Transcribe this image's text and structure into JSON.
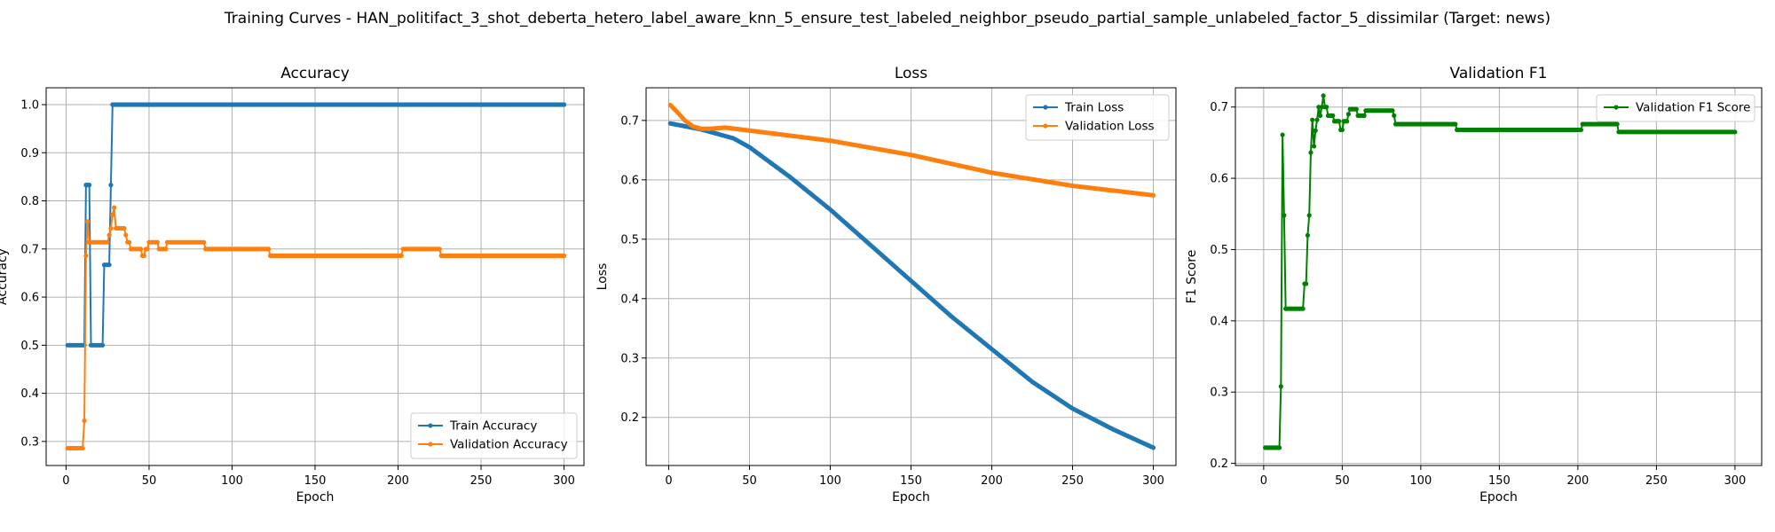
{
  "figure": {
    "suptitle": "Training Curves - HAN_politifact_3_shot_deberta_hetero_label_aware_knn_5_ensure_test_labeled_neighbor_pseudo_partial_sample_unlabeled_factor_5_dissimilar (Target: news)"
  },
  "chart_data": [
    {
      "type": "line",
      "title": "Accuracy",
      "xlabel": "Epoch",
      "ylabel": "Accuracy",
      "xlim": [
        -12,
        312
      ],
      "ylim": [
        0.25,
        1.035
      ],
      "xticks": [
        0,
        50,
        100,
        150,
        200,
        250,
        300
      ],
      "yticks": [
        0.3,
        0.4,
        0.5,
        0.6,
        0.7,
        0.8,
        0.9,
        1.0
      ],
      "ytick_labels": [
        "0.3",
        "0.4",
        "0.5",
        "0.6",
        "0.7",
        "0.8",
        "0.9",
        "1.0"
      ],
      "grid": true,
      "legend_position": "lower-right",
      "series": [
        {
          "name": "Train Accuracy",
          "color": "#1f77b4",
          "segments": [
            {
              "x": [
                1,
                10
              ],
              "y": 0.5
            },
            {
              "x": [
                11,
                11
              ],
              "y": 0.5
            },
            {
              "x": [
                12,
                14
              ],
              "y": 0.833
            },
            {
              "x": [
                15,
                22
              ],
              "y": 0.5
            },
            {
              "x": [
                23,
                26
              ],
              "y": 0.667
            },
            {
              "x": [
                27,
                27
              ],
              "y": 0.833
            },
            {
              "x": [
                28,
                300
              ],
              "y": 1.0
            }
          ]
        },
        {
          "name": "Validation Accuracy",
          "color": "#ff7f0e",
          "segments": [
            {
              "x": [
                1,
                10
              ],
              "y": 0.286
            },
            {
              "x": [
                11,
                11
              ],
              "y": 0.343
            },
            {
              "x": [
                12,
                12
              ],
              "y": 0.686
            },
            {
              "x": [
                13,
                13
              ],
              "y": 0.757
            },
            {
              "x": [
                14,
                25
              ],
              "y": 0.714
            },
            {
              "x": [
                26,
                26
              ],
              "y": 0.729
            },
            {
              "x": [
                27,
                27
              ],
              "y": 0.743
            },
            {
              "x": [
                28,
                28
              ],
              "y": 0.771
            },
            {
              "x": [
                29,
                29
              ],
              "y": 0.786
            },
            {
              "x": [
                30,
                35
              ],
              "y": 0.743
            },
            {
              "x": [
                36,
                36
              ],
              "y": 0.729
            },
            {
              "x": [
                37,
                38
              ],
              "y": 0.714
            },
            {
              "x": [
                39,
                41
              ],
              "y": 0.7
            },
            {
              "x": [
                42,
                45
              ],
              "y": 0.7
            },
            {
              "x": [
                46,
                47
              ],
              "y": 0.686
            },
            {
              "x": [
                48,
                49
              ],
              "y": 0.7
            },
            {
              "x": [
                50,
                55
              ],
              "y": 0.714
            },
            {
              "x": [
                56,
                60
              ],
              "y": 0.7
            },
            {
              "x": [
                61,
                64
              ],
              "y": 0.714
            },
            {
              "x": [
                65,
                83
              ],
              "y": 0.714
            },
            {
              "x": [
                84,
                122
              ],
              "y": 0.7
            },
            {
              "x": [
                123,
                202
              ],
              "y": 0.686
            },
            {
              "x": [
                203,
                225
              ],
              "y": 0.7
            },
            {
              "x": [
                226,
                300
              ],
              "y": 0.686
            }
          ]
        }
      ]
    },
    {
      "type": "line",
      "title": "Loss",
      "xlabel": "Epoch",
      "ylabel": "Loss",
      "xlim": [
        -14,
        314
      ],
      "ylim": [
        0.119,
        0.755
      ],
      "xticks": [
        0,
        50,
        100,
        150,
        200,
        250,
        300
      ],
      "yticks": [
        0.2,
        0.3,
        0.4,
        0.5,
        0.6,
        0.7
      ],
      "ytick_labels": [
        "0.2",
        "0.3",
        "0.4",
        "0.5",
        "0.6",
        "0.7"
      ],
      "grid": true,
      "legend_position": "upper-right",
      "series": [
        {
          "name": "Train Loss",
          "color": "#1f77b4",
          "curve": {
            "x": [
              1,
              20,
              40,
              50,
              75,
              100,
              125,
              150,
              175,
              200,
              225,
              250,
              275,
              300
            ],
            "y": [
              0.695,
              0.685,
              0.67,
              0.655,
              0.605,
              0.55,
              0.49,
              0.43,
              0.37,
              0.315,
              0.26,
              0.215,
              0.18,
              0.149
            ]
          }
        },
        {
          "name": "Validation Loss",
          "color": "#ff7f0e",
          "curve": {
            "x": [
              1,
              5,
              10,
              15,
              20,
              25,
              35,
              50,
              100,
              150,
              200,
              250,
              300
            ],
            "y": [
              0.726,
              0.715,
              0.7,
              0.69,
              0.686,
              0.686,
              0.688,
              0.683,
              0.666,
              0.642,
              0.612,
              0.59,
              0.574
            ]
          }
        }
      ]
    },
    {
      "type": "line",
      "title": "Validation F1",
      "xlabel": "Epoch",
      "ylabel": "F1 Score",
      "xlim": [
        -18,
        317
      ],
      "ylim": [
        0.197,
        0.727
      ],
      "xticks": [
        0,
        50,
        100,
        150,
        200,
        250,
        300
      ],
      "yticks": [
        0.2,
        0.3,
        0.4,
        0.5,
        0.6,
        0.7
      ],
      "ytick_labels": [
        "0.2",
        "0.3",
        "0.4",
        "0.5",
        "0.6",
        "0.7"
      ],
      "grid": true,
      "legend_position": "upper-right",
      "series": [
        {
          "name": "Validation F1 Score",
          "color": "#008000",
          "segments": [
            {
              "x": [
                1,
                10
              ],
              "y": 0.222
            },
            {
              "x": [
                11,
                11
              ],
              "y": 0.308
            },
            {
              "x": [
                12,
                12
              ],
              "y": 0.661
            },
            {
              "x": [
                13,
                13
              ],
              "y": 0.548
            },
            {
              "x": [
                14,
                25
              ],
              "y": 0.417
            },
            {
              "x": [
                26,
                26
              ],
              "y": 0.452
            },
            {
              "x": [
                27,
                27
              ],
              "y": 0.452
            },
            {
              "x": [
                28,
                28
              ],
              "y": 0.52
            },
            {
              "x": [
                29,
                29
              ],
              "y": 0.548
            },
            {
              "x": [
                30,
                30
              ],
              "y": 0.636
            },
            {
              "x": [
                31,
                31
              ],
              "y": 0.682
            },
            {
              "x": [
                32,
                32
              ],
              "y": 0.645
            },
            {
              "x": [
                33,
                33
              ],
              "y": 0.667
            },
            {
              "x": [
                34,
                34
              ],
              "y": 0.682
            },
            {
              "x": [
                35,
                35
              ],
              "y": 0.7
            },
            {
              "x": [
                36,
                36
              ],
              "y": 0.688
            },
            {
              "x": [
                37,
                37
              ],
              "y": 0.7
            },
            {
              "x": [
                38,
                38
              ],
              "y": 0.716
            },
            {
              "x": [
                39,
                40
              ],
              "y": 0.7
            },
            {
              "x": [
                41,
                44
              ],
              "y": 0.688
            },
            {
              "x": [
                45,
                48
              ],
              "y": 0.68
            },
            {
              "x": [
                49,
                50
              ],
              "y": 0.668
            },
            {
              "x": [
                51,
                53
              ],
              "y": 0.68
            },
            {
              "x": [
                54,
                54
              ],
              "y": 0.69
            },
            {
              "x": [
                55,
                59
              ],
              "y": 0.697
            },
            {
              "x": [
                60,
                64
              ],
              "y": 0.688
            },
            {
              "x": [
                65,
                82
              ],
              "y": 0.695
            },
            {
              "x": [
                83,
                83
              ],
              "y": 0.688
            },
            {
              "x": [
                84,
                122
              ],
              "y": 0.676
            },
            {
              "x": [
                123,
                202
              ],
              "y": 0.668
            },
            {
              "x": [
                203,
                225
              ],
              "y": 0.676
            },
            {
              "x": [
                226,
                300
              ],
              "y": 0.665
            }
          ]
        }
      ]
    }
  ]
}
